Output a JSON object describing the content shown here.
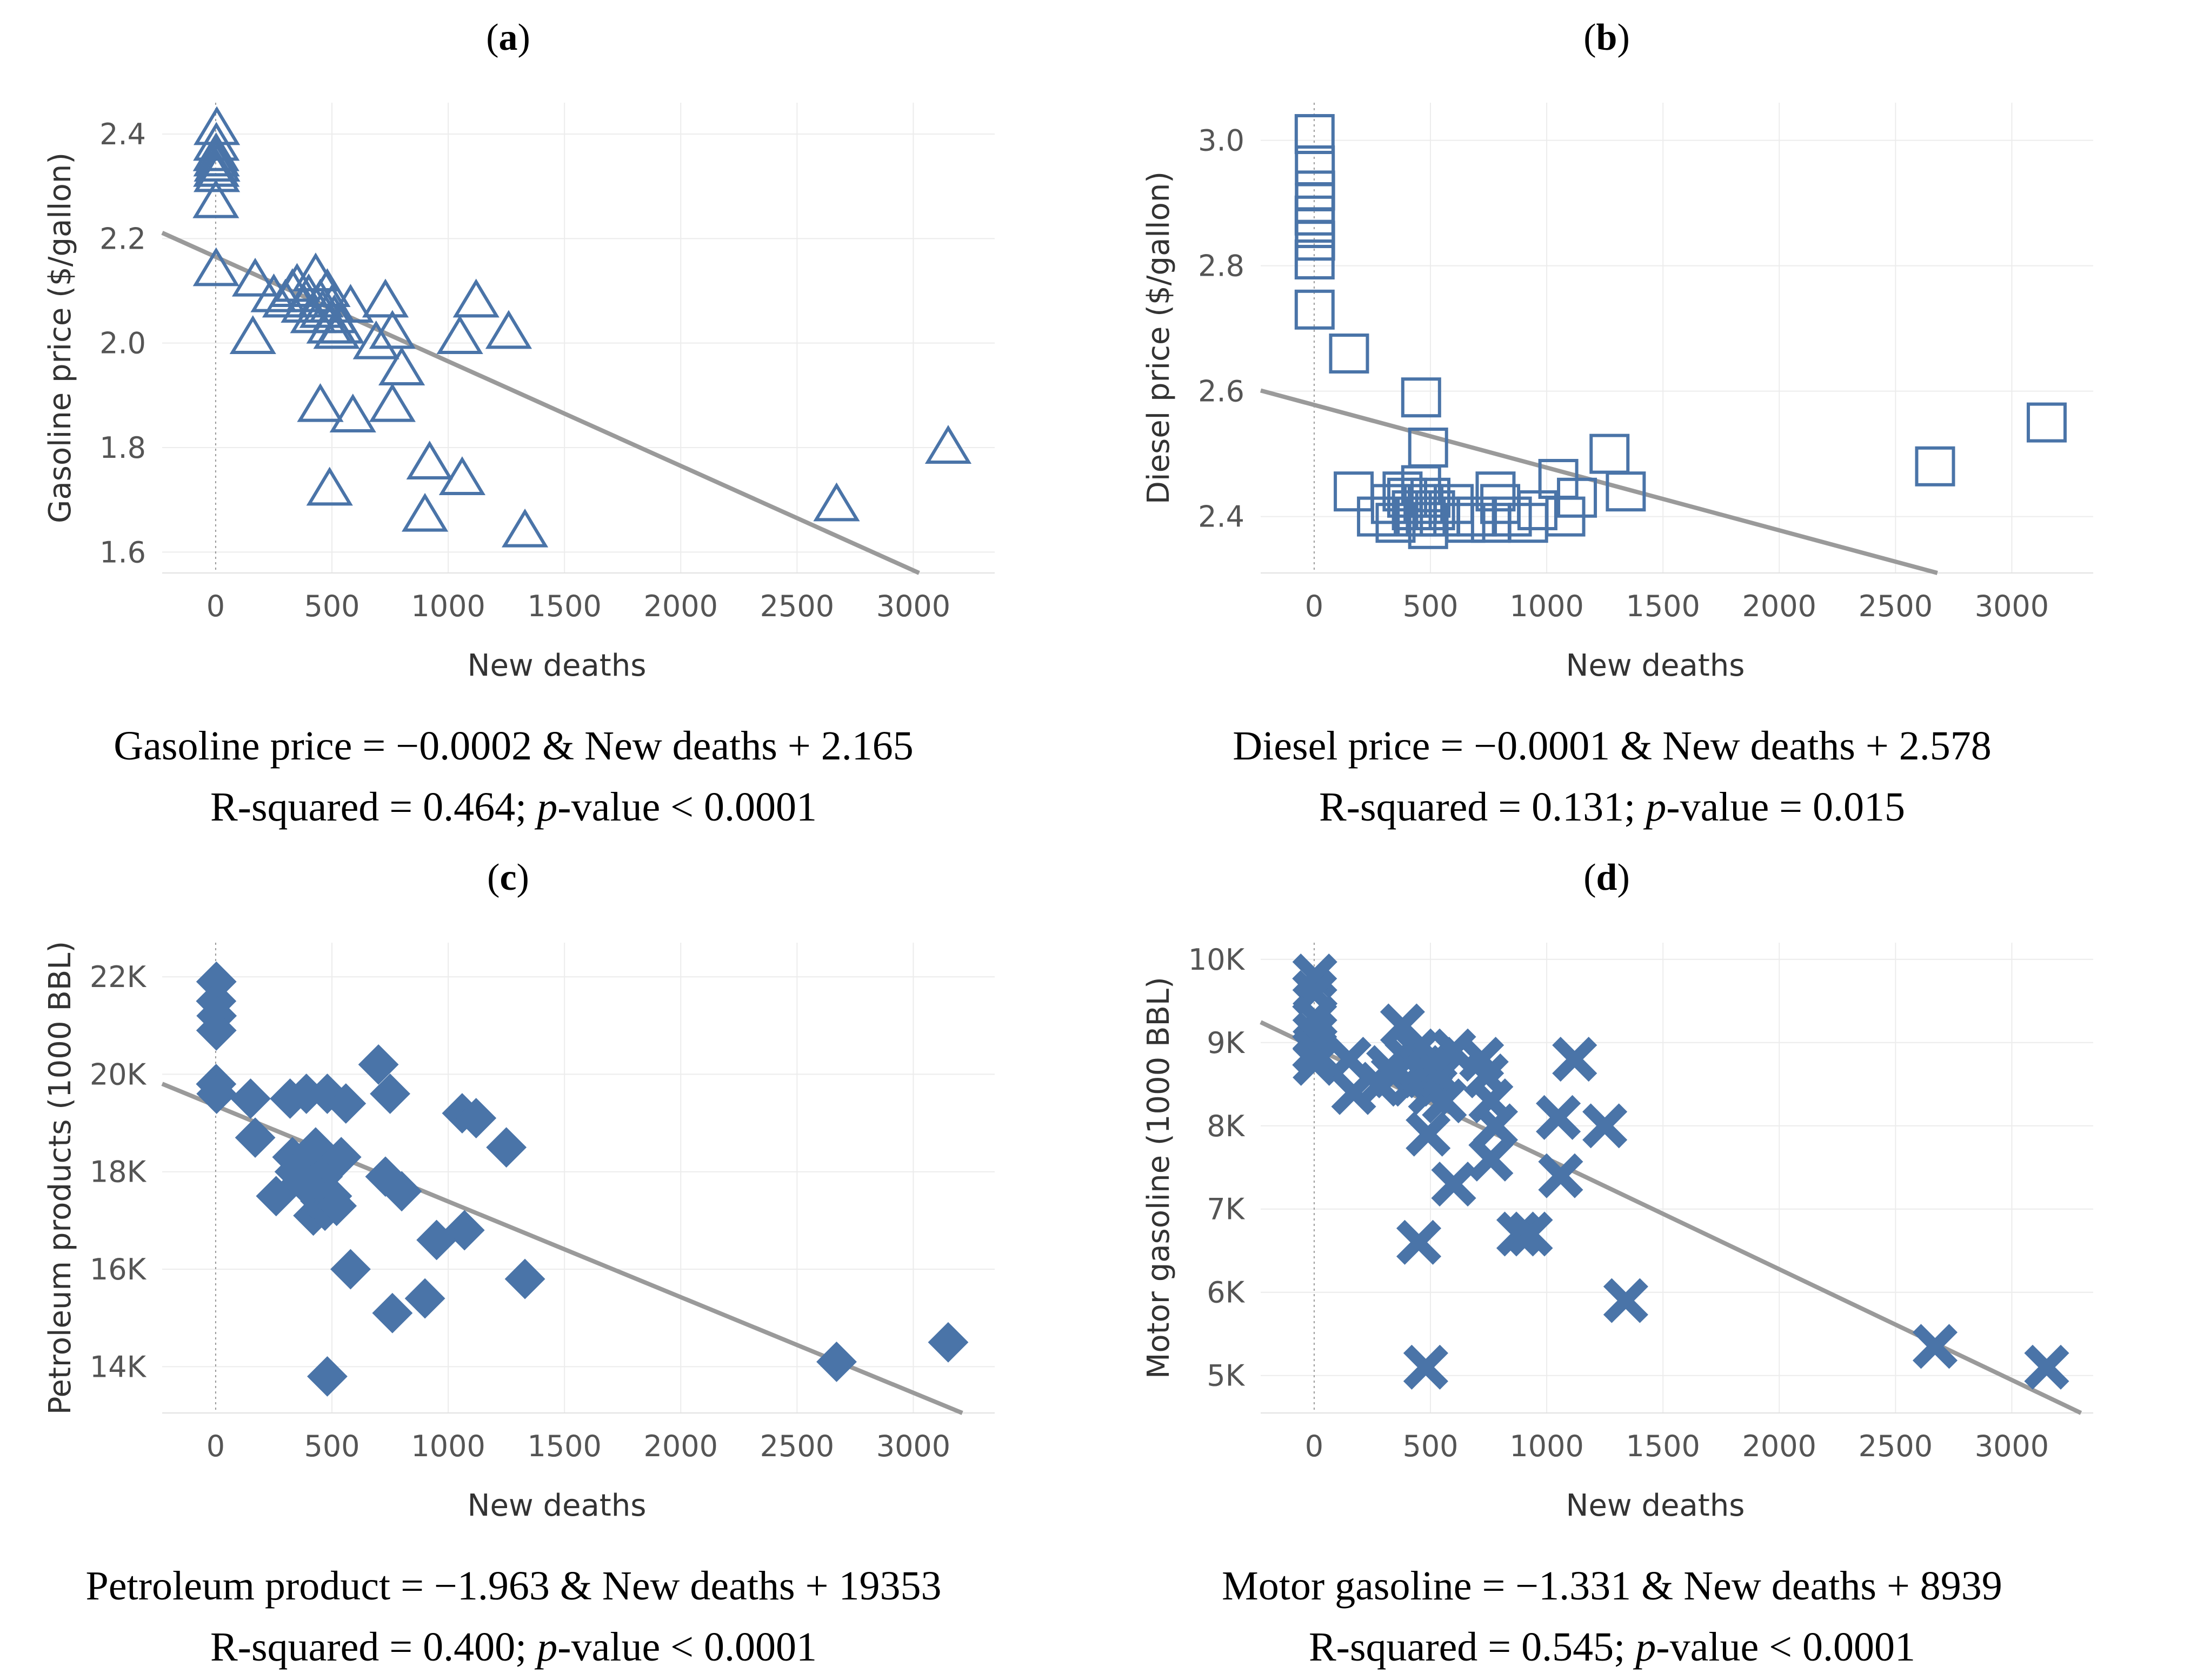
{
  "chart_data": [
    {
      "type": "scatter",
      "panel_label": "a",
      "xlabel": "New deaths",
      "ylabel": "Gasoline price ($/gallon)",
      "xlim": [
        -230,
        3350
      ],
      "ylim": [
        1.56,
        2.46
      ],
      "xticks": [
        0,
        500,
        1000,
        1500,
        2000,
        2500,
        3000
      ],
      "xtick_labels": [
        "0",
        "500",
        "1000",
        "1500",
        "2000",
        "2500",
        "3000"
      ],
      "yticks": [
        1.6,
        1.8,
        2.0,
        2.2,
        2.4
      ],
      "ytick_labels": [
        "1.6",
        "1.8",
        "2.0",
        "2.2",
        "2.4"
      ],
      "marker": "triangle",
      "trend": {
        "intercept": 2.165,
        "slope": -0.0002
      },
      "equation": "Gasoline price = −0.0002 & New deaths + 2.165",
      "stats_prefix": "R-squared = 0.464; ",
      "stats_p": "p",
      "stats_suffix": "-value < 0.0001",
      "points": [
        [
          5,
          2.41
        ],
        [
          3,
          2.38
        ],
        [
          2,
          2.36
        ],
        [
          4,
          2.35
        ],
        [
          6,
          2.34
        ],
        [
          3,
          2.33
        ],
        [
          5,
          2.32
        ],
        [
          1,
          2.27
        ],
        [
          2,
          2.14
        ],
        [
          160,
          2.01
        ],
        [
          170,
          2.12
        ],
        [
          250,
          2.09
        ],
        [
          300,
          2.08
        ],
        [
          330,
          2.1
        ],
        [
          350,
          2.11
        ],
        [
          380,
          2.07
        ],
        [
          400,
          2.09
        ],
        [
          420,
          2.05
        ],
        [
          430,
          2.13
        ],
        [
          450,
          2.08
        ],
        [
          460,
          2.06
        ],
        [
          480,
          2.1
        ],
        [
          490,
          2.03
        ],
        [
          500,
          2.07
        ],
        [
          510,
          2.05
        ],
        [
          520,
          2.02
        ],
        [
          540,
          2.03
        ],
        [
          580,
          2.07
        ],
        [
          690,
          2.0
        ],
        [
          730,
          2.08
        ],
        [
          760,
          2.02
        ],
        [
          800,
          1.95
        ],
        [
          450,
          1.88
        ],
        [
          590,
          1.86
        ],
        [
          760,
          1.88
        ],
        [
          490,
          1.72
        ],
        [
          920,
          1.77
        ],
        [
          900,
          1.67
        ],
        [
          1060,
          1.74
        ],
        [
          1050,
          2.01
        ],
        [
          1120,
          2.08
        ],
        [
          1260,
          2.02
        ],
        [
          1330,
          1.64
        ],
        [
          2670,
          1.69
        ],
        [
          3150,
          1.8
        ]
      ]
    },
    {
      "type": "scatter",
      "panel_label": "b",
      "xlabel": "New deaths",
      "ylabel": "Diesel price ($/gallon)",
      "xlim": [
        -230,
        3350
      ],
      "ylim": [
        2.31,
        3.06
      ],
      "xticks": [
        0,
        500,
        1000,
        1500,
        2000,
        2500,
        3000
      ],
      "xtick_labels": [
        "0",
        "500",
        "1000",
        "1500",
        "2000",
        "2500",
        "3000"
      ],
      "yticks": [
        2.4,
        2.6,
        2.8,
        3.0
      ],
      "ytick_labels": [
        "2.4",
        "2.6",
        "2.8",
        "3.0"
      ],
      "marker": "square",
      "trend": {
        "intercept": 2.578,
        "slope": -0.0001
      },
      "equation": "Diesel price = −0.0001 & New deaths + 2.578",
      "stats_prefix": "R-squared = 0.131; ",
      "stats_p": "p",
      "stats_suffix": "-value = 0.015",
      "points": [
        [
          2,
          3.01
        ],
        [
          3,
          2.96
        ],
        [
          4,
          2.92
        ],
        [
          3,
          2.9
        ],
        [
          2,
          2.88
        ],
        [
          3,
          2.86
        ],
        [
          4,
          2.84
        ],
        [
          2,
          2.81
        ],
        [
          2,
          2.73
        ],
        [
          150,
          2.66
        ],
        [
          170,
          2.44
        ],
        [
          270,
          2.4
        ],
        [
          330,
          2.42
        ],
        [
          350,
          2.39
        ],
        [
          380,
          2.44
        ],
        [
          400,
          2.43
        ],
        [
          420,
          2.41
        ],
        [
          440,
          2.4
        ],
        [
          460,
          2.45
        ],
        [
          470,
          2.42
        ],
        [
          480,
          2.4
        ],
        [
          490,
          2.38
        ],
        [
          500,
          2.43
        ],
        [
          520,
          2.41
        ],
        [
          540,
          2.4
        ],
        [
          600,
          2.42
        ],
        [
          650,
          2.39
        ],
        [
          700,
          2.4
        ],
        [
          760,
          2.39
        ],
        [
          780,
          2.44
        ],
        [
          800,
          2.42
        ],
        [
          850,
          2.4
        ],
        [
          920,
          2.39
        ],
        [
          960,
          2.41
        ],
        [
          1050,
          2.46
        ],
        [
          1080,
          2.4
        ],
        [
          1130,
          2.43
        ],
        [
          1270,
          2.5
        ],
        [
          1340,
          2.44
        ],
        [
          460,
          2.59
        ],
        [
          490,
          2.51
        ],
        [
          2670,
          2.48
        ],
        [
          3150,
          2.55
        ]
      ]
    },
    {
      "type": "scatter",
      "panel_label": "c",
      "xlabel": "New deaths",
      "ylabel": "Petroleum products (1000 BBL)",
      "xlim": [
        -230,
        3350
      ],
      "ylim": [
        13050,
        22700
      ],
      "xticks": [
        0,
        500,
        1000,
        1500,
        2000,
        2500,
        3000
      ],
      "xtick_labels": [
        "0",
        "500",
        "1000",
        "1500",
        "2000",
        "2500",
        "3000"
      ],
      "yticks": [
        14000,
        16000,
        18000,
        20000,
        22000
      ],
      "ytick_labels": [
        "14K",
        "16K",
        "18K",
        "20K",
        "22K"
      ],
      "marker": "diamond",
      "trend": {
        "intercept": 19353,
        "slope": -1.963
      },
      "equation": "Petroleum product = −1.963 & New deaths + 19353",
      "stats_prefix": "R-squared = 0.400; ",
      "stats_p": "p",
      "stats_suffix": "-value < 0.0001",
      "points": [
        [
          3,
          21900
        ],
        [
          2,
          21500
        ],
        [
          4,
          21200
        ],
        [
          3,
          20900
        ],
        [
          2,
          19800
        ],
        [
          4,
          19600
        ],
        [
          150,
          19500
        ],
        [
          170,
          18700
        ],
        [
          260,
          17500
        ],
        [
          320,
          19500
        ],
        [
          330,
          18300
        ],
        [
          340,
          18000
        ],
        [
          370,
          17800
        ],
        [
          390,
          19600
        ],
        [
          400,
          18200
        ],
        [
          420,
          17100
        ],
        [
          430,
          18500
        ],
        [
          450,
          17400
        ],
        [
          460,
          17900
        ],
        [
          470,
          17200
        ],
        [
          480,
          19600
        ],
        [
          490,
          18100
        ],
        [
          500,
          17500
        ],
        [
          520,
          17300
        ],
        [
          540,
          18300
        ],
        [
          560,
          19400
        ],
        [
          580,
          16000
        ],
        [
          700,
          20200
        ],
        [
          730,
          17900
        ],
        [
          750,
          19600
        ],
        [
          760,
          15100
        ],
        [
          800,
          17600
        ],
        [
          900,
          15400
        ],
        [
          950,
          16600
        ],
        [
          1060,
          19200
        ],
        [
          1070,
          16800
        ],
        [
          1120,
          19100
        ],
        [
          1250,
          18500
        ],
        [
          1330,
          15800
        ],
        [
          480,
          13800
        ],
        [
          2670,
          14100
        ],
        [
          3150,
          14500
        ]
      ]
    },
    {
      "type": "scatter",
      "panel_label": "d",
      "xlabel": "New deaths",
      "ylabel": "Motor gasoline (1000 BBL)",
      "xlim": [
        -230,
        3350
      ],
      "ylim": [
        4550,
        10200
      ],
      "xticks": [
        0,
        500,
        1000,
        1500,
        2000,
        2500,
        3000
      ],
      "xtick_labels": [
        "0",
        "500",
        "1000",
        "1500",
        "2000",
        "2500",
        "3000"
      ],
      "yticks": [
        5000,
        6000,
        7000,
        8000,
        9000,
        10000
      ],
      "ytick_labels": [
        "5K",
        "6K",
        "7K",
        "8K",
        "9K",
        "10K"
      ],
      "marker": "cross",
      "trend": {
        "intercept": 8939,
        "slope": -1.331
      },
      "equation": "Motor gasoline = −1.331 & New deaths + 8939",
      "stats_prefix": "R-squared = 0.545; ",
      "stats_p": "p",
      "stats_suffix": "-value < 0.0001",
      "points": [
        [
          3,
          9800
        ],
        [
          2,
          9600
        ],
        [
          4,
          9300
        ],
        [
          3,
          9100
        ],
        [
          2,
          8900
        ],
        [
          4,
          8750
        ],
        [
          150,
          8800
        ],
        [
          170,
          8400
        ],
        [
          280,
          8500
        ],
        [
          320,
          8700
        ],
        [
          340,
          8600
        ],
        [
          380,
          9200
        ],
        [
          400,
          8800
        ],
        [
          420,
          8500
        ],
        [
          440,
          8900
        ],
        [
          460,
          8700
        ],
        [
          480,
          8600
        ],
        [
          500,
          8400
        ],
        [
          520,
          8800
        ],
        [
          540,
          8600
        ],
        [
          560,
          8300
        ],
        [
          600,
          8900
        ],
        [
          720,
          8800
        ],
        [
          740,
          8600
        ],
        [
          760,
          8300
        ],
        [
          780,
          8000
        ],
        [
          760,
          7600
        ],
        [
          1050,
          8100
        ],
        [
          1120,
          8800
        ],
        [
          1250,
          8000
        ],
        [
          1060,
          7400
        ],
        [
          880,
          6700
        ],
        [
          930,
          6700
        ],
        [
          600,
          7300
        ],
        [
          490,
          7900
        ],
        [
          450,
          6600
        ],
        [
          480,
          5100
        ],
        [
          1340,
          5900
        ],
        [
          2670,
          5350
        ],
        [
          3150,
          5100
        ]
      ]
    }
  ]
}
